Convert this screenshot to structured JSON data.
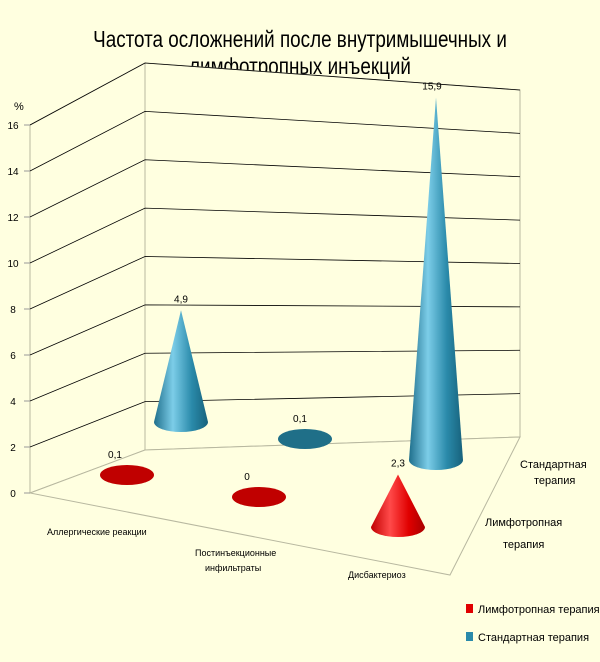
{
  "chart_data": {
    "type": "bar",
    "title": "Частота осложнений после внутримышечных и лимфотропных инъекций",
    "ylabel": "%",
    "ylim": [
      0,
      16
    ],
    "yticks": [
      0,
      2,
      4,
      6,
      8,
      10,
      12,
      14,
      16
    ],
    "categories": [
      "Аллергические  реакции",
      "Постинъекционные инфильтраты",
      "Дисбактериоз"
    ],
    "depth_labels": [
      [
        "Лимфотропная",
        "терапия"
      ],
      [
        "Стандартная",
        "терапия"
      ]
    ],
    "series": [
      {
        "name": "Лимфотропная терапия",
        "values": [
          0.1,
          0,
          2.3
        ],
        "labels": [
          "0,1",
          "0",
          "2,3"
        ],
        "color": "#E00000"
      },
      {
        "name": "Стандартная терапия",
        "values": [
          4.9,
          0.1,
          15.9
        ],
        "labels": [
          "4,9",
          "0,1",
          "15,9"
        ],
        "color": "#2A8AAA"
      }
    ],
    "grid": true,
    "legend": "bottom-right",
    "shape": "cone"
  }
}
